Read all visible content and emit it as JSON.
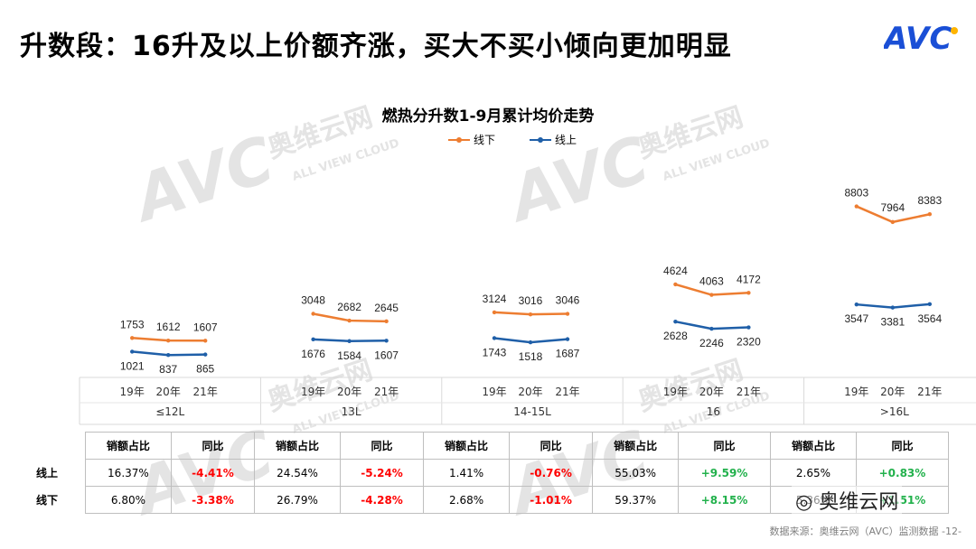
{
  "slide_title": "升数段：16升及以上价额齐涨，买大不买小倾向更加明显",
  "logo_text": "AVC",
  "watermark": {
    "cn": "奥维云网",
    "en": "ALL VIEW CLOUD"
  },
  "wechat_mark": "奥维云网",
  "source_note": "数据来源：奥维云网（AVC）监测数据 -12-",
  "colors": {
    "offline": "#ed7d31",
    "online": "#1f5fa8",
    "positive": "#22b14c",
    "negative": "#ff0000"
  },
  "chart_data": {
    "type": "line",
    "title": "燃热分升数1-9月累计均价走势",
    "legend_position": "top-center",
    "legend": [
      "线下",
      "线上"
    ],
    "groups": [
      "≤12L",
      "13L",
      "14-15L",
      "16",
      ">16L"
    ],
    "years": [
      "19年",
      "20年",
      "21年"
    ],
    "series": [
      {
        "name": "线下",
        "values": [
          [
            1753,
            1612,
            1607
          ],
          [
            3048,
            2682,
            2645
          ],
          [
            3124,
            3016,
            3046
          ],
          [
            4624,
            4063,
            4172
          ],
          [
            8803,
            7964,
            8383
          ]
        ]
      },
      {
        "name": "线上",
        "values": [
          [
            1021,
            837,
            865
          ],
          [
            1676,
            1584,
            1607
          ],
          [
            1743,
            1518,
            1687
          ],
          [
            2628,
            2246,
            2320
          ],
          [
            3547,
            3381,
            3564
          ]
        ]
      }
    ],
    "grid": false
  },
  "table": {
    "headers": [
      "销额占比",
      "同比"
    ],
    "rows": [
      {
        "label": "线上",
        "cells": [
          {
            "share": "16.37%",
            "yoy": "-4.41%",
            "dir": "neg"
          },
          {
            "share": "24.54%",
            "yoy": "-5.24%",
            "dir": "neg"
          },
          {
            "share": "1.41%",
            "yoy": "-0.76%",
            "dir": "neg"
          },
          {
            "share": "55.03%",
            "yoy": "+9.59%",
            "dir": "pos"
          },
          {
            "share": "2.65%",
            "yoy": "+0.83%",
            "dir": "pos"
          }
        ]
      },
      {
        "label": "线下",
        "cells": [
          {
            "share": "6.80%",
            "yoy": "-3.38%",
            "dir": "neg"
          },
          {
            "share": "26.79%",
            "yoy": "-4.28%",
            "dir": "neg"
          },
          {
            "share": "2.68%",
            "yoy": "-1.01%",
            "dir": "neg"
          },
          {
            "share": "59.37%",
            "yoy": "+8.15%",
            "dir": "pos"
          },
          {
            "share": "5.36%",
            "yoy": "+1.51%",
            "dir": "pos"
          }
        ]
      }
    ]
  }
}
